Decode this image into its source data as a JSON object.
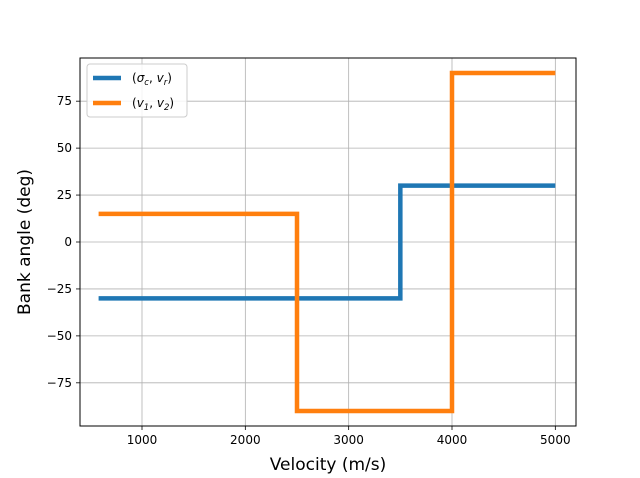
{
  "chart_data": {
    "type": "line",
    "xlabel": "Velocity (m/s)",
    "ylabel": "Bank angle (deg)",
    "xlim": [
      400,
      5200
    ],
    "ylim": [
      -98,
      98
    ],
    "x_ticks": [
      1000,
      2000,
      3000,
      4000,
      5000
    ],
    "y_ticks": [
      -75,
      -50,
      -25,
      0,
      25,
      50,
      75
    ],
    "grid": true,
    "legend_position": "top-left",
    "series": [
      {
        "name": "(σ_c, v_r)",
        "legend_parts": [
          [
            "(",
            ""
          ],
          [
            "σ",
            "italic"
          ],
          [
            "c",
            "sub"
          ],
          [
            ", ",
            ""
          ],
          [
            "v",
            "italic"
          ],
          [
            "r",
            "sub"
          ],
          [
            ")",
            ""
          ]
        ],
        "color": "#1f77b4",
        "step": "post",
        "x": [
          580,
          3500,
          5000
        ],
        "y": [
          -30,
          30,
          30
        ]
      },
      {
        "name": "(v_1, v_2)",
        "legend_parts": [
          [
            "(",
            ""
          ],
          [
            "v",
            "italic"
          ],
          [
            "1",
            "sub"
          ],
          [
            ", ",
            ""
          ],
          [
            "v",
            "italic"
          ],
          [
            "2",
            "sub"
          ],
          [
            ")",
            ""
          ]
        ],
        "color": "#ff7f0e",
        "step": "post",
        "x": [
          580,
          2500,
          4000,
          5000
        ],
        "y": [
          15,
          -90,
          90,
          90
        ]
      }
    ]
  }
}
